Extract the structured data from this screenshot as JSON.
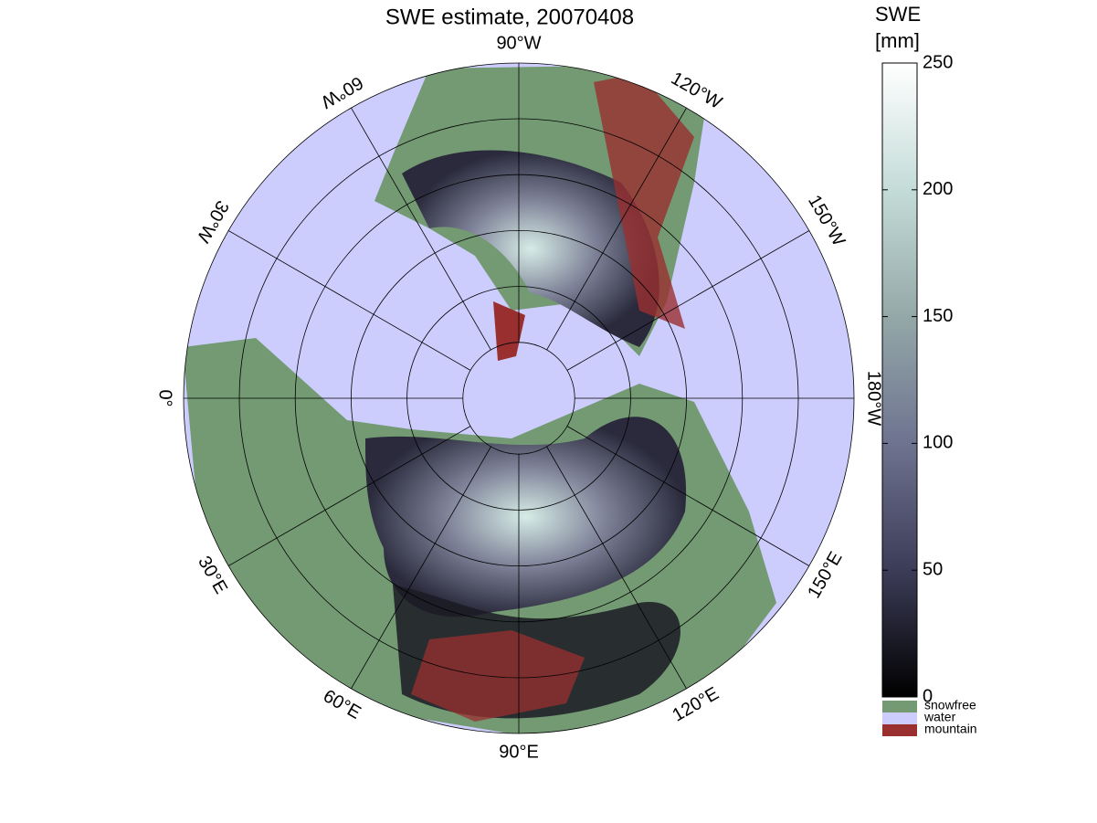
{
  "title": "SWE estimate, 20070408",
  "map": {
    "longitude_labels": [
      "90°W",
      "120°W",
      "150°W",
      "180°W",
      "150°E",
      "120°E",
      "90°E",
      "60°E",
      "30°E",
      "0°",
      "30°W",
      "60°W"
    ]
  },
  "colorbar": {
    "title": [
      "SWE",
      "[mm]"
    ],
    "lim": [
      0,
      250
    ],
    "ticks": [
      0,
      50,
      100,
      150,
      200,
      250
    ],
    "colors": [
      "#000000",
      "#3c3c58",
      "#6e7390",
      "#94a8a8",
      "#c4dcd8",
      "#ffffff"
    ]
  },
  "legend": [
    {
      "label": "snowfree",
      "color": "#739a73"
    },
    {
      "label": "water",
      "color": "#cccdfd"
    },
    {
      "label": "mountain",
      "color": "#9a2f2f"
    }
  ]
}
